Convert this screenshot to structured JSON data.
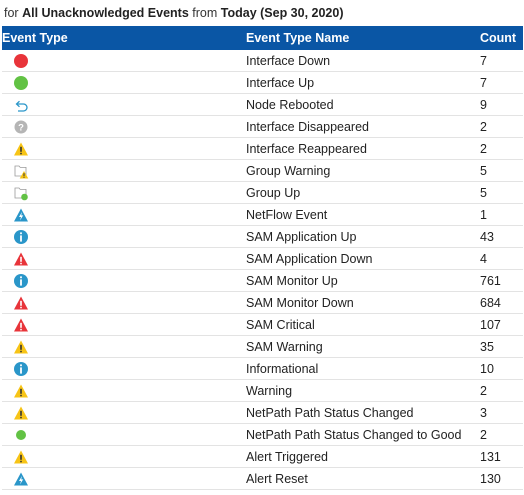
{
  "subtitle": {
    "prefix": "for",
    "filter": "All Unacknowledged Events",
    "mid": "from",
    "period": "Today (Sep 30, 2020)"
  },
  "table": {
    "headers": {
      "type": "Event Type",
      "name": "Event Type Name",
      "count": "Count"
    },
    "rows": [
      {
        "icon": "red-circle-icon",
        "name": "Interface Down",
        "count": "7"
      },
      {
        "icon": "green-circle-icon",
        "name": "Interface Up",
        "count": "7"
      },
      {
        "icon": "reboot-arrow-icon",
        "name": "Node Rebooted",
        "count": "9"
      },
      {
        "icon": "question-icon",
        "name": "Interface Disappeared",
        "count": "2"
      },
      {
        "icon": "warning-triangle-icon",
        "name": "Interface Reappeared",
        "count": "2"
      },
      {
        "icon": "group-warning-icon",
        "name": "Group Warning",
        "count": "5"
      },
      {
        "icon": "group-up-icon",
        "name": "Group Up",
        "count": "5"
      },
      {
        "icon": "netflow-icon",
        "name": "NetFlow Event",
        "count": "1"
      },
      {
        "icon": "info-icon",
        "name": "SAM Application Up",
        "count": "43"
      },
      {
        "icon": "critical-triangle-icon",
        "name": "SAM Application Down",
        "count": "4"
      },
      {
        "icon": "info-icon",
        "name": "SAM Monitor Up",
        "count": "761"
      },
      {
        "icon": "critical-triangle-icon",
        "name": "SAM Monitor Down",
        "count": "684"
      },
      {
        "icon": "critical-triangle-icon",
        "name": "SAM Critical",
        "count": "107"
      },
      {
        "icon": "warning-triangle-icon",
        "name": "SAM Warning",
        "count": "35"
      },
      {
        "icon": "info-icon",
        "name": "Informational",
        "count": "10"
      },
      {
        "icon": "warning-triangle-icon",
        "name": "Warning",
        "count": "2"
      },
      {
        "icon": "warning-triangle-icon",
        "name": "NetPath Path Status Changed",
        "count": "3"
      },
      {
        "icon": "small-green-dot-icon",
        "name": "NetPath Path Status Changed to Good",
        "count": "2"
      },
      {
        "icon": "warning-triangle-icon",
        "name": "Alert Triggered",
        "count": "131"
      },
      {
        "icon": "netflow-icon",
        "name": "Alert Reset",
        "count": "130"
      }
    ]
  },
  "colors": {
    "header_bg": "#0a56a5",
    "red": "#e8343a",
    "green": "#62c244",
    "blue": "#2a96c9",
    "yellow": "#f7c416",
    "gray": "#b5b5b5"
  }
}
